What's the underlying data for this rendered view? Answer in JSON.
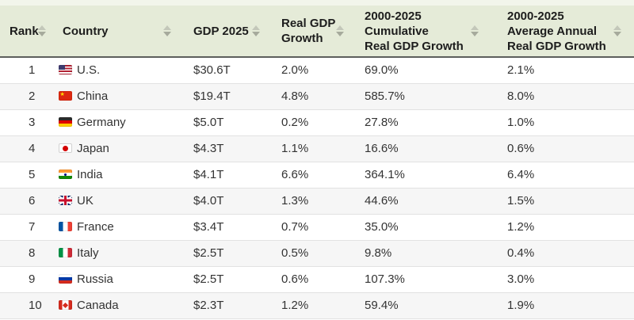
{
  "colors": {
    "header_bg": "#e5ebd8",
    "header_top_strip": "#f2f5eb",
    "header_border": "#5d5f5c",
    "row_border": "#e2e2e2",
    "row_alt_bg": "#f6f6f6",
    "text_header": "#1d1d1d",
    "text_body": "#333333",
    "sort_icon": "#aeb2a5"
  },
  "table": {
    "columns": [
      {
        "id": "rank",
        "lines": [
          "Rank"
        ],
        "sortable": true
      },
      {
        "id": "country",
        "lines": [
          "Country"
        ],
        "sortable": true
      },
      {
        "id": "gdp_2025",
        "lines": [
          "GDP 2025"
        ],
        "sortable": true
      },
      {
        "id": "real_gdp_growth",
        "lines": [
          "Real GDP",
          "Growth"
        ],
        "sortable": true
      },
      {
        "id": "cumulative_growth",
        "lines": [
          "2000-2025",
          "Cumulative",
          "Real GDP Growth"
        ],
        "sortable": true
      },
      {
        "id": "avg_annual_growth",
        "lines": [
          "2000-2025",
          "Average Annual",
          "Real GDP Growth"
        ],
        "sortable": true
      }
    ],
    "rows": [
      {
        "rank": "1",
        "flag": "us",
        "country": "U.S.",
        "gdp_2025": "$30.6T",
        "real_gdp_growth": "2.0%",
        "cumulative_growth": "69.0%",
        "avg_annual_growth": "2.1%"
      },
      {
        "rank": "2",
        "flag": "cn",
        "country": "China",
        "gdp_2025": "$19.4T",
        "real_gdp_growth": "4.8%",
        "cumulative_growth": "585.7%",
        "avg_annual_growth": "8.0%"
      },
      {
        "rank": "3",
        "flag": "de",
        "country": "Germany",
        "gdp_2025": "$5.0T",
        "real_gdp_growth": "0.2%",
        "cumulative_growth": "27.8%",
        "avg_annual_growth": "1.0%"
      },
      {
        "rank": "4",
        "flag": "jp",
        "country": "Japan",
        "gdp_2025": "$4.3T",
        "real_gdp_growth": "1.1%",
        "cumulative_growth": "16.6%",
        "avg_annual_growth": "0.6%"
      },
      {
        "rank": "5",
        "flag": "in",
        "country": "India",
        "gdp_2025": "$4.1T",
        "real_gdp_growth": "6.6%",
        "cumulative_growth": "364.1%",
        "avg_annual_growth": "6.4%"
      },
      {
        "rank": "6",
        "flag": "gb",
        "country": "UK",
        "gdp_2025": "$4.0T",
        "real_gdp_growth": "1.3%",
        "cumulative_growth": "44.6%",
        "avg_annual_growth": "1.5%"
      },
      {
        "rank": "7",
        "flag": "fr",
        "country": "France",
        "gdp_2025": "$3.4T",
        "real_gdp_growth": "0.7%",
        "cumulative_growth": "35.0%",
        "avg_annual_growth": "1.2%"
      },
      {
        "rank": "8",
        "flag": "it",
        "country": "Italy",
        "gdp_2025": "$2.5T",
        "real_gdp_growth": "0.5%",
        "cumulative_growth": "9.8%",
        "avg_annual_growth": "0.4%"
      },
      {
        "rank": "9",
        "flag": "ru",
        "country": "Russia",
        "gdp_2025": "$2.5T",
        "real_gdp_growth": "0.6%",
        "cumulative_growth": "107.3%",
        "avg_annual_growth": "3.0%"
      },
      {
        "rank": "10",
        "flag": "ca",
        "country": "Canada",
        "gdp_2025": "$2.3T",
        "real_gdp_growth": "1.2%",
        "cumulative_growth": "59.4%",
        "avg_annual_growth": "1.9%"
      }
    ]
  }
}
